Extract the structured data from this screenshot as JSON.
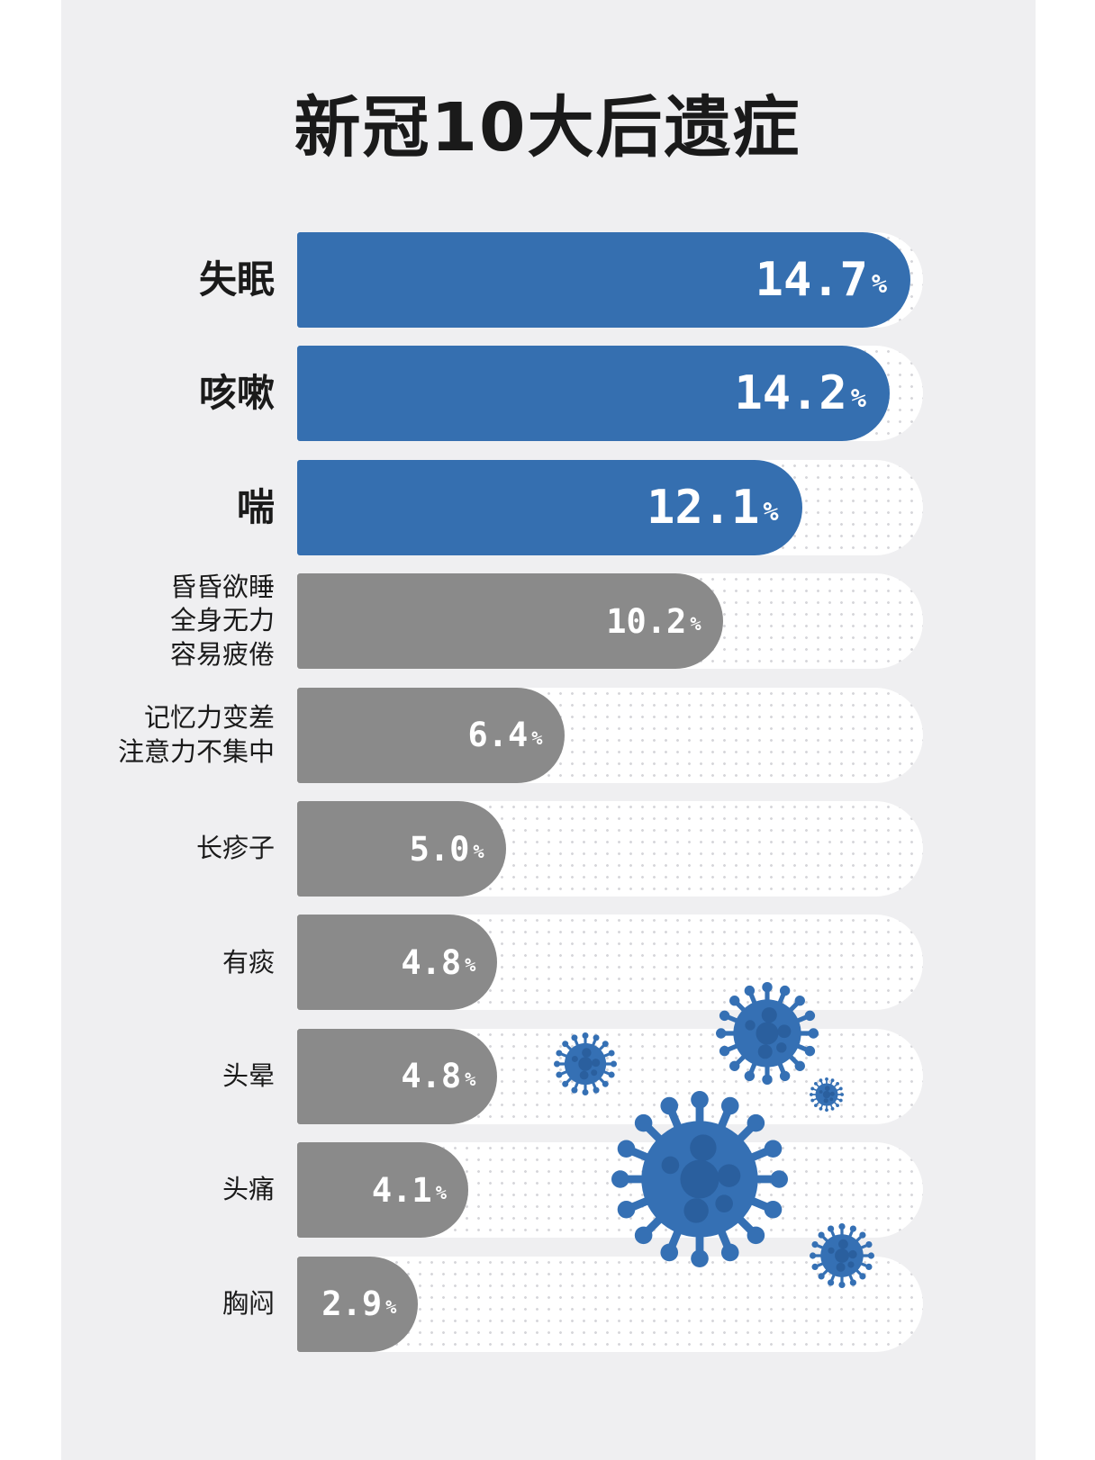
{
  "chart_data": {
    "type": "bar",
    "orientation": "horizontal",
    "title": "新冠10大后遗症",
    "categories": [
      [
        "失眠"
      ],
      [
        "咳嗽"
      ],
      [
        "喘"
      ],
      [
        "昏昏欲睡",
        "全身无力",
        "容易疲倦"
      ],
      [
        "记忆力变差",
        "注意力不集中"
      ],
      [
        "长疹子"
      ],
      [
        "有痰"
      ],
      [
        "头晕"
      ],
      [
        "头痛"
      ],
      [
        "胸闷"
      ]
    ],
    "values": [
      14.7,
      14.2,
      12.1,
      10.2,
      6.4,
      5.0,
      4.8,
      4.8,
      4.1,
      2.9
    ],
    "value_labels": [
      "14.7",
      "14.2",
      "12.1",
      "10.2",
      "6.4",
      "5.0",
      "4.8",
      "4.8",
      "4.1",
      "2.9"
    ],
    "unit": "%",
    "xlim": [
      0,
      15
    ],
    "grid": false,
    "highlight_count": 3,
    "colors": {
      "highlight": "#356fb0",
      "normal": "#8a8a8a",
      "virus": "#3570b4",
      "virus_dark": "#2a5f9e",
      "background": "#efeff1"
    }
  }
}
